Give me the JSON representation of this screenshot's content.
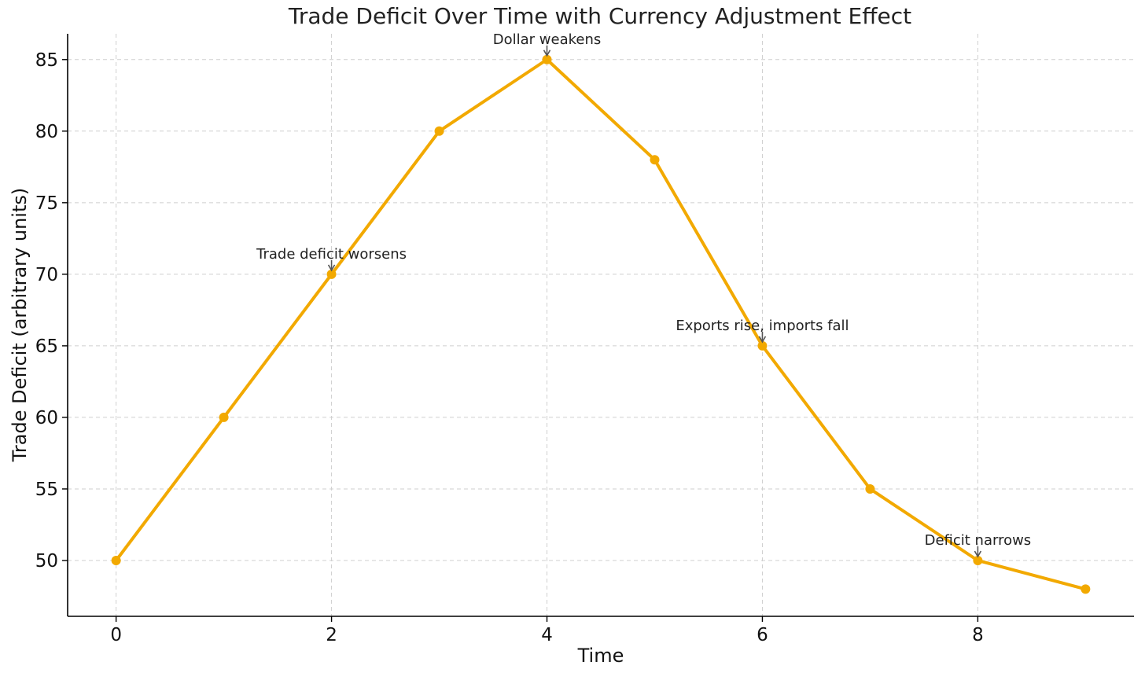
{
  "chart_data": {
    "type": "line",
    "title": "Trade Deficit Over Time with Currency Adjustment Effect",
    "xlabel": "Time",
    "ylabel": "Trade Deficit (arbitrary units)",
    "x": [
      0,
      1,
      2,
      3,
      4,
      5,
      6,
      7,
      8,
      9
    ],
    "series": [
      {
        "values": [
          50,
          60,
          70,
          80,
          85,
          78,
          65,
          55,
          50,
          48
        ],
        "color": "#f2a900"
      }
    ],
    "xlim": [
      -0.45,
      9.45
    ],
    "ylim": [
      46.1,
      86.8
    ],
    "xticks": [
      0,
      2,
      4,
      6,
      8
    ],
    "yticks": [
      50,
      55,
      60,
      65,
      70,
      75,
      80,
      85
    ],
    "grid": true,
    "annotations": [
      {
        "text": "Trade deficit worsens",
        "x": 2,
        "y": 70
      },
      {
        "text": "Dollar weakens",
        "x": 4,
        "y": 85
      },
      {
        "text": "Exports rise, imports fall",
        "x": 6,
        "y": 65
      },
      {
        "text": "Deficit narrows",
        "x": 8,
        "y": 50
      }
    ]
  }
}
